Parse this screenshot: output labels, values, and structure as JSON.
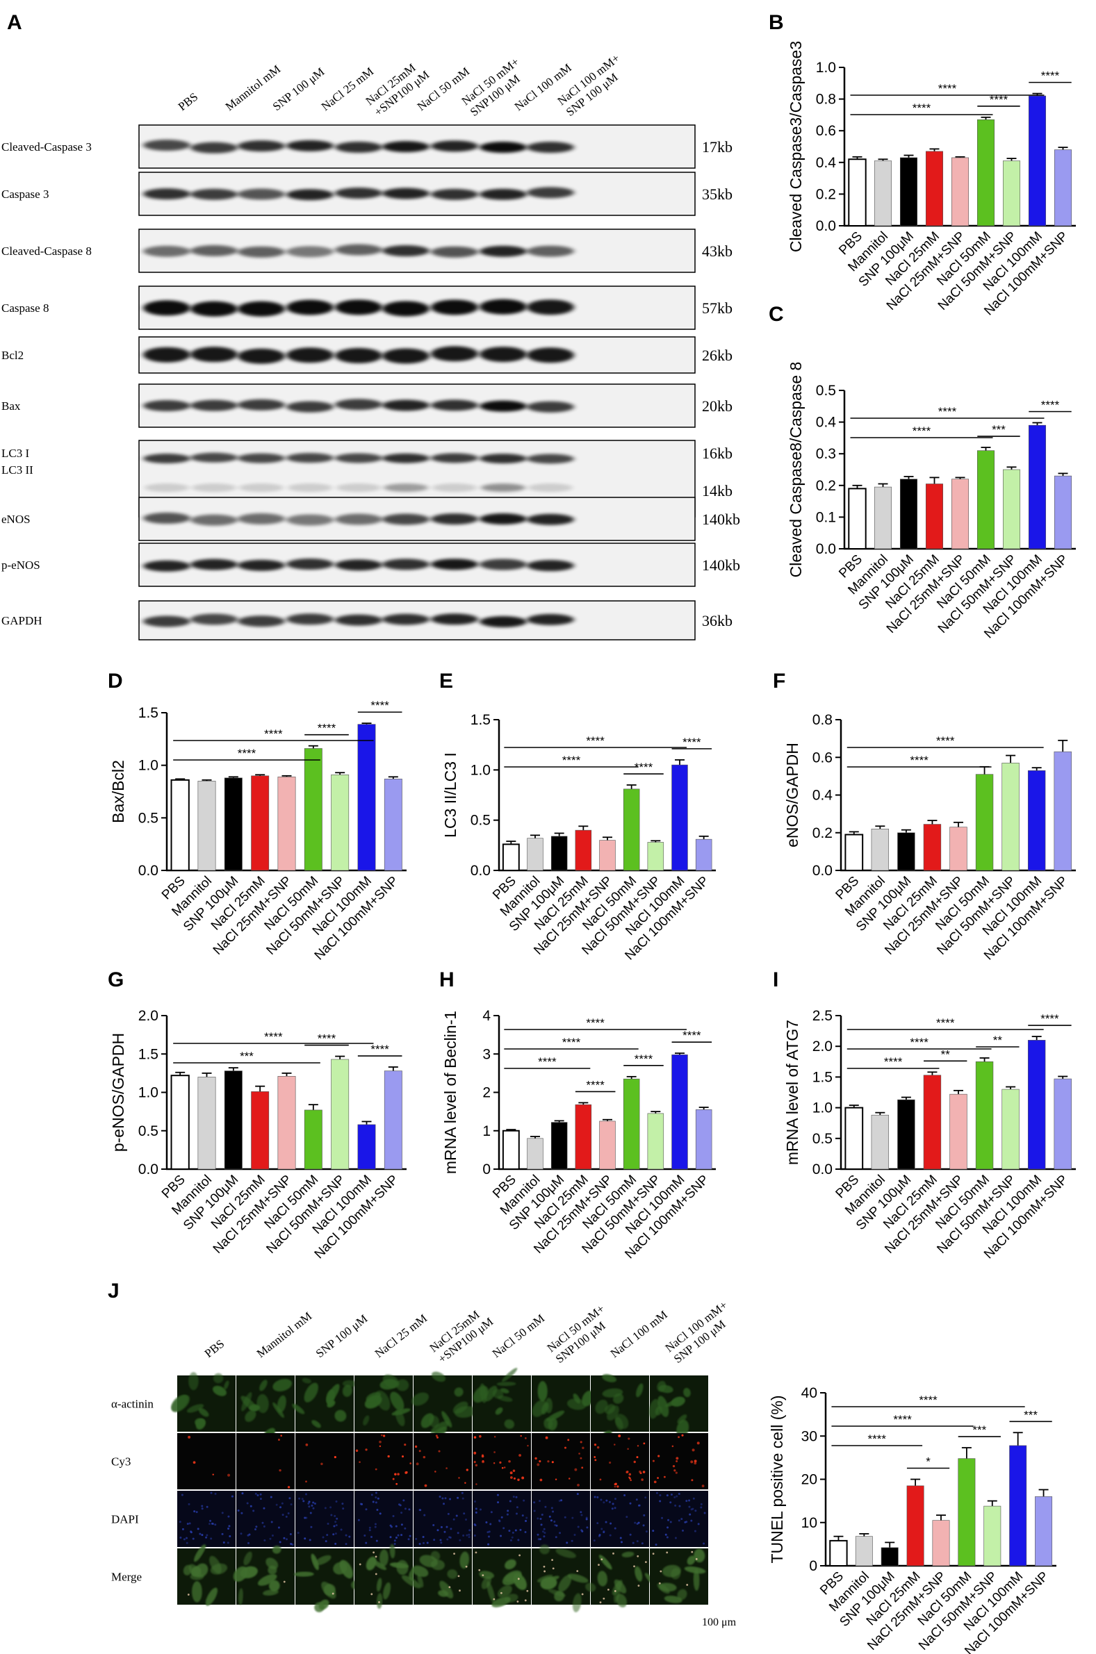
{
  "panel_labels": {
    "A": "A",
    "B": "B",
    "C": "C",
    "D": "D",
    "E": "E",
    "F": "F",
    "G": "G",
    "H": "H",
    "I": "I",
    "J": "J"
  },
  "colors": {
    "pbs": "#ffffff",
    "mannitol": "#d4d4d4",
    "snp": "#000000",
    "nacl25": "#e21a1a",
    "nacl25snp": "#f2b2b2",
    "nacl50": "#5cc020",
    "nacl50snp": "#c3f0a8",
    "nacl100": "#1a16e8",
    "nacl100snp": "#9a9af0",
    "fluor_green": "#2f5e23",
    "fluor_red": "#ff3a1a",
    "fluor_blue": "#2a3fb0"
  },
  "blot": {
    "lanes": [
      "PBS",
      "Mannitol mM",
      "SNP 100 μM",
      "NaCl 25 mM",
      "NaCl 25mM\n+SNP100 μM",
      "NaCl 50 mM",
      "NaCl 50 mM+\nSNP100 μM",
      "NaCl 100 mM",
      "NaCl 100 mM+\nSNP 100 μM"
    ],
    "rows": [
      {
        "name": "Cleaved-Caspase 3",
        "size": "17kb",
        "intensity": [
          0.7,
          0.75,
          0.8,
          0.85,
          0.8,
          0.9,
          0.85,
          0.95,
          0.8
        ]
      },
      {
        "name": "Caspase 3",
        "size": "35kb",
        "intensity": [
          0.8,
          0.75,
          0.65,
          0.85,
          0.8,
          0.85,
          0.8,
          0.85,
          0.75
        ]
      },
      {
        "name": "Cleaved-Caspase 8",
        "size": "43kb",
        "intensity": [
          0.55,
          0.6,
          0.6,
          0.5,
          0.6,
          0.8,
          0.65,
          0.85,
          0.6
        ]
      },
      {
        "name": "Caspase 8",
        "size": "57kb",
        "intensity": [
          0.95,
          0.95,
          0.95,
          0.95,
          0.95,
          0.95,
          0.95,
          0.95,
          0.9
        ]
      },
      {
        "name": "Bcl2",
        "size": "26kb",
        "intensity": [
          0.9,
          0.9,
          0.9,
          0.9,
          0.9,
          0.9,
          0.9,
          0.9,
          0.9
        ]
      },
      {
        "name": "Bax",
        "size": "20kb",
        "intensity": [
          0.75,
          0.75,
          0.75,
          0.75,
          0.75,
          0.85,
          0.8,
          0.95,
          0.75
        ]
      },
      {
        "name": "LC3 I",
        "name2": "LC3 II",
        "size": "16kb",
        "size2": "14kb",
        "intensity": [
          0.75,
          0.7,
          0.7,
          0.7,
          0.7,
          0.8,
          0.75,
          0.8,
          0.7
        ],
        "intensity2": [
          0.15,
          0.15,
          0.15,
          0.15,
          0.15,
          0.35,
          0.15,
          0.4,
          0.15
        ]
      },
      {
        "name": "eNOS",
        "size": "140kb",
        "intensity": [
          0.65,
          0.55,
          0.55,
          0.5,
          0.55,
          0.7,
          0.8,
          0.9,
          0.85
        ]
      },
      {
        "name": "p-eNOS",
        "size": "140kb",
        "intensity": [
          0.85,
          0.85,
          0.85,
          0.8,
          0.85,
          0.8,
          0.9,
          0.75,
          0.85
        ]
      },
      {
        "name": "GAPDH",
        "size": "36kb",
        "intensity": [
          0.75,
          0.7,
          0.75,
          0.75,
          0.8,
          0.8,
          0.85,
          0.9,
          0.85
        ]
      }
    ]
  },
  "chart_data": [
    {
      "id": "B",
      "type": "bar",
      "title": "",
      "ylabel": "Cleaved Caspase3/Caspase3",
      "xlabel": "",
      "categories": [
        "PBS",
        "Mannitol",
        "SNP 100μM",
        "NaCl 25mM",
        "NaCl 25mM+SNP",
        "NaCl 50mM",
        "NaCl 50mM+SNP",
        "NaCl 100mM",
        "NaCl 100mM+SNP"
      ],
      "values": [
        0.42,
        0.41,
        0.43,
        0.47,
        0.43,
        0.67,
        0.41,
        0.82,
        0.48
      ],
      "errors": [
        0.015,
        0.01,
        0.015,
        0.015,
        0.005,
        0.015,
        0.015,
        0.015,
        0.015
      ],
      "ylim": [
        0,
        1.0
      ],
      "yticks": [
        "0.0",
        "0.2",
        "0.4",
        "0.6",
        "0.8",
        "1.0"
      ],
      "sig": [
        {
          "from": 0,
          "to": 5,
          "label": "****"
        },
        {
          "from": 0,
          "to": 7,
          "label": "****"
        },
        {
          "from": 5,
          "to": 6,
          "label": "****"
        },
        {
          "from": 7,
          "to": 8,
          "label": "****"
        }
      ]
    },
    {
      "id": "C",
      "type": "bar",
      "title": "",
      "ylabel": "Cleaved Caspase8/Caspase 8",
      "xlabel": "",
      "categories": [
        "PBS",
        "Mannitol",
        "SNP 100μM",
        "NaCl 25mM",
        "NaCl 25mM+SNP",
        "NaCl 50mM",
        "NaCl 50mM+SNP",
        "NaCl 100mM",
        "NaCl 100mM+SNP"
      ],
      "values": [
        0.19,
        0.195,
        0.22,
        0.205,
        0.22,
        0.31,
        0.25,
        0.39,
        0.23
      ],
      "errors": [
        0.01,
        0.01,
        0.008,
        0.02,
        0.005,
        0.01,
        0.008,
        0.008,
        0.008
      ],
      "ylim": [
        0,
        0.5
      ],
      "yticks": [
        "0.0",
        "0.1",
        "0.2",
        "0.3",
        "0.4",
        "0.5"
      ],
      "sig": [
        {
          "from": 0,
          "to": 5,
          "label": "****"
        },
        {
          "from": 0,
          "to": 7,
          "label": "****"
        },
        {
          "from": 5,
          "to": 6,
          "label": "***"
        },
        {
          "from": 7,
          "to": 8,
          "label": "****"
        }
      ]
    },
    {
      "id": "D",
      "type": "bar",
      "title": "",
      "ylabel": "Bax/Bcl2",
      "xlabel": "",
      "categories": [
        "PBS",
        "Mannitol",
        "SNP 100μM",
        "NaCl 25mM",
        "NaCl 25mM+SNP",
        "NaCl 50mM",
        "NaCl 50mM+SNP",
        "NaCl 100mM",
        "NaCl 100mM+SNP"
      ],
      "values": [
        0.86,
        0.85,
        0.88,
        0.9,
        0.89,
        1.16,
        0.91,
        1.39,
        0.87
      ],
      "errors": [
        0.01,
        0.01,
        0.01,
        0.01,
        0.01,
        0.025,
        0.02,
        0.01,
        0.02
      ],
      "ylim": [
        0,
        1.5
      ],
      "yticks": [
        "0.0",
        "0.5",
        "1.0",
        "1.5"
      ],
      "sig": [
        {
          "from": 0,
          "to": 5,
          "label": "****"
        },
        {
          "from": 0,
          "to": 7,
          "label": "****"
        },
        {
          "from": 5,
          "to": 6,
          "label": "****"
        },
        {
          "from": 7,
          "to": 8,
          "label": "****"
        }
      ]
    },
    {
      "id": "E",
      "type": "bar",
      "title": "",
      "ylabel": "LC3 II/LC3 I",
      "xlabel": "",
      "categories": [
        "PBS",
        "Mannitol",
        "SNP 100μM",
        "NaCl 25mM",
        "NaCl 25mM+SNP",
        "NaCl 50mM",
        "NaCl 50mM+SNP",
        "NaCl 100mM",
        "NaCl 100mM+SNP"
      ],
      "values": [
        0.26,
        0.32,
        0.34,
        0.4,
        0.3,
        0.81,
        0.28,
        1.05,
        0.31
      ],
      "errors": [
        0.03,
        0.03,
        0.03,
        0.04,
        0.03,
        0.04,
        0.015,
        0.05,
        0.03
      ],
      "ylim": [
        0,
        1.5
      ],
      "yticks": [
        "0.0",
        "0.5",
        "1.0",
        "1.5"
      ],
      "sig": [
        {
          "from": 0,
          "to": 5,
          "label": "****"
        },
        {
          "from": 0,
          "to": 7,
          "label": "****"
        },
        {
          "from": 5,
          "to": 6,
          "label": "****"
        },
        {
          "from": 7,
          "to": 8,
          "label": "****"
        }
      ]
    },
    {
      "id": "F",
      "type": "bar",
      "title": "",
      "ylabel": "eNOS/GAPDH",
      "xlabel": "",
      "categories": [
        "PBS",
        "Mannitol",
        "SNP 100μM",
        "NaCl 25mM",
        "NaCl 25mM+SNP",
        "NaCl 50mM",
        "NaCl 50mM+SNP",
        "NaCl 100mM",
        "NaCl 100mM+SNP"
      ],
      "values": [
        0.19,
        0.22,
        0.2,
        0.245,
        0.23,
        0.51,
        0.57,
        0.53,
        0.63
      ],
      "errors": [
        0.015,
        0.015,
        0.015,
        0.02,
        0.025,
        0.04,
        0.04,
        0.015,
        0.06
      ],
      "ylim": [
        0,
        0.8
      ],
      "yticks": [
        "0.0",
        "0.2",
        "0.4",
        "0.6",
        "0.8"
      ],
      "sig": [
        {
          "from": 0,
          "to": 5,
          "label": "****"
        },
        {
          "from": 0,
          "to": 7,
          "label": "****"
        }
      ]
    },
    {
      "id": "G",
      "type": "bar",
      "title": "",
      "ylabel": "p-eNOS/GAPDH",
      "xlabel": "",
      "categories": [
        "PBS",
        "Mannitol",
        "SNP 100μM",
        "NaCl 25mM",
        "NaCl 25mM+SNP",
        "NaCl 50mM",
        "NaCl 50mM+SNP",
        "NaCl 100mM",
        "NaCl 100mM+SNP"
      ],
      "values": [
        1.22,
        1.2,
        1.28,
        1.01,
        1.21,
        0.77,
        1.43,
        0.58,
        1.28
      ],
      "errors": [
        0.04,
        0.05,
        0.04,
        0.07,
        0.04,
        0.07,
        0.04,
        0.04,
        0.05
      ],
      "ylim": [
        0,
        2.0
      ],
      "yticks": [
        "0.0",
        "0.5",
        "1.0",
        "1.5",
        "2.0"
      ],
      "sig": [
        {
          "from": 0,
          "to": 5,
          "label": "***"
        },
        {
          "from": 0,
          "to": 7,
          "label": "****"
        },
        {
          "from": 5,
          "to": 6,
          "label": "****"
        },
        {
          "from": 7,
          "to": 8,
          "label": "****"
        }
      ]
    },
    {
      "id": "H",
      "type": "bar",
      "title": "",
      "ylabel": "mRNA level of Beclin-1",
      "xlabel": "",
      "categories": [
        "PBS",
        "Mannitol",
        "SNP 100μM",
        "NaCl 25mM",
        "NaCl 25mM+SNP",
        "NaCl 50mM",
        "NaCl 50mM+SNP",
        "NaCl 100mM",
        "NaCl 100mM+SNP"
      ],
      "values": [
        1.0,
        0.8,
        1.22,
        1.68,
        1.25,
        2.35,
        1.45,
        2.98,
        1.55
      ],
      "errors": [
        0.03,
        0.05,
        0.04,
        0.05,
        0.04,
        0.06,
        0.05,
        0.04,
        0.06
      ],
      "ylim": [
        0,
        4
      ],
      "yticks": [
        "0",
        "1",
        "2",
        "3",
        "4"
      ],
      "sig": [
        {
          "from": 0,
          "to": 3,
          "label": "****"
        },
        {
          "from": 0,
          "to": 5,
          "label": "****"
        },
        {
          "from": 0,
          "to": 7,
          "label": "****"
        },
        {
          "from": 3,
          "to": 4,
          "label": "****"
        },
        {
          "from": 5,
          "to": 6,
          "label": "****"
        },
        {
          "from": 7,
          "to": 8,
          "label": "****"
        }
      ]
    },
    {
      "id": "I",
      "type": "bar",
      "title": "",
      "ylabel": "mRNA level of ATG7",
      "xlabel": "",
      "categories": [
        "PBS",
        "Mannitol",
        "SNP 100μM",
        "NaCl 25mM",
        "NaCl 25mM+SNP",
        "NaCl 50mM",
        "NaCl 50mM+SNP",
        "NaCl 100mM",
        "NaCl 100mM+SNP"
      ],
      "values": [
        1.0,
        0.88,
        1.13,
        1.53,
        1.22,
        1.75,
        1.3,
        2.1,
        1.47
      ],
      "errors": [
        0.04,
        0.04,
        0.04,
        0.05,
        0.06,
        0.06,
        0.04,
        0.06,
        0.04
      ],
      "ylim": [
        0,
        2.5
      ],
      "yticks": [
        "0.0",
        "0.5",
        "1.0",
        "1.5",
        "2.0",
        "2.5"
      ],
      "sig": [
        {
          "from": 0,
          "to": 3,
          "label": "****"
        },
        {
          "from": 0,
          "to": 5,
          "label": "****"
        },
        {
          "from": 0,
          "to": 7,
          "label": "****"
        },
        {
          "from": 3,
          "to": 4,
          "label": "**"
        },
        {
          "from": 5,
          "to": 6,
          "label": "**"
        },
        {
          "from": 7,
          "to": 8,
          "label": "****"
        }
      ]
    },
    {
      "id": "J",
      "type": "bar",
      "title": "",
      "ylabel": "TUNEL positive cell (%)",
      "xlabel": "",
      "categories": [
        "PBS",
        "Mannitol",
        "SNP 100μM",
        "NaCl 25mM",
        "NaCl 25mM+SNP",
        "NaCl 50mM",
        "NaCl 50mM+SNP",
        "NaCl 100mM",
        "NaCl 100mM+SNP"
      ],
      "values": [
        5.8,
        6.8,
        4.2,
        18.5,
        10.5,
        24.8,
        13.8,
        27.8,
        16.0
      ],
      "errors": [
        1.0,
        0.6,
        1.2,
        1.5,
        1.2,
        2.5,
        1.2,
        3.0,
        1.6
      ],
      "ylim": [
        0,
        40
      ],
      "yticks": [
        "0",
        "10",
        "20",
        "30",
        "40"
      ],
      "sig": [
        {
          "from": 0,
          "to": 3,
          "label": "****"
        },
        {
          "from": 0,
          "to": 5,
          "label": "****"
        },
        {
          "from": 0,
          "to": 7,
          "label": "****"
        },
        {
          "from": 3,
          "to": 4,
          "label": "*"
        },
        {
          "from": 5,
          "to": 6,
          "label": "***"
        },
        {
          "from": 7,
          "to": 8,
          "label": "***"
        }
      ]
    }
  ],
  "micro": {
    "lanes": [
      "PBS",
      "Mannitol mM",
      "SNP 100 μM",
      "NaCl 25 mM",
      "NaCl 25mM\n+SNP100 μM",
      "NaCl 50 mM",
      "NaCl 50 mM+\nSNP100 μM",
      "NaCl 100 mM",
      "NaCl 100 mM+\nSNP 100 μM"
    ],
    "rows": [
      "α-actinin",
      "Cy3",
      "DAPI",
      "Merge"
    ],
    "red_density": [
      0.05,
      0.05,
      0.05,
      0.35,
      0.25,
      0.55,
      0.35,
      0.6,
      0.4
    ],
    "scale_label": "100 μm"
  }
}
